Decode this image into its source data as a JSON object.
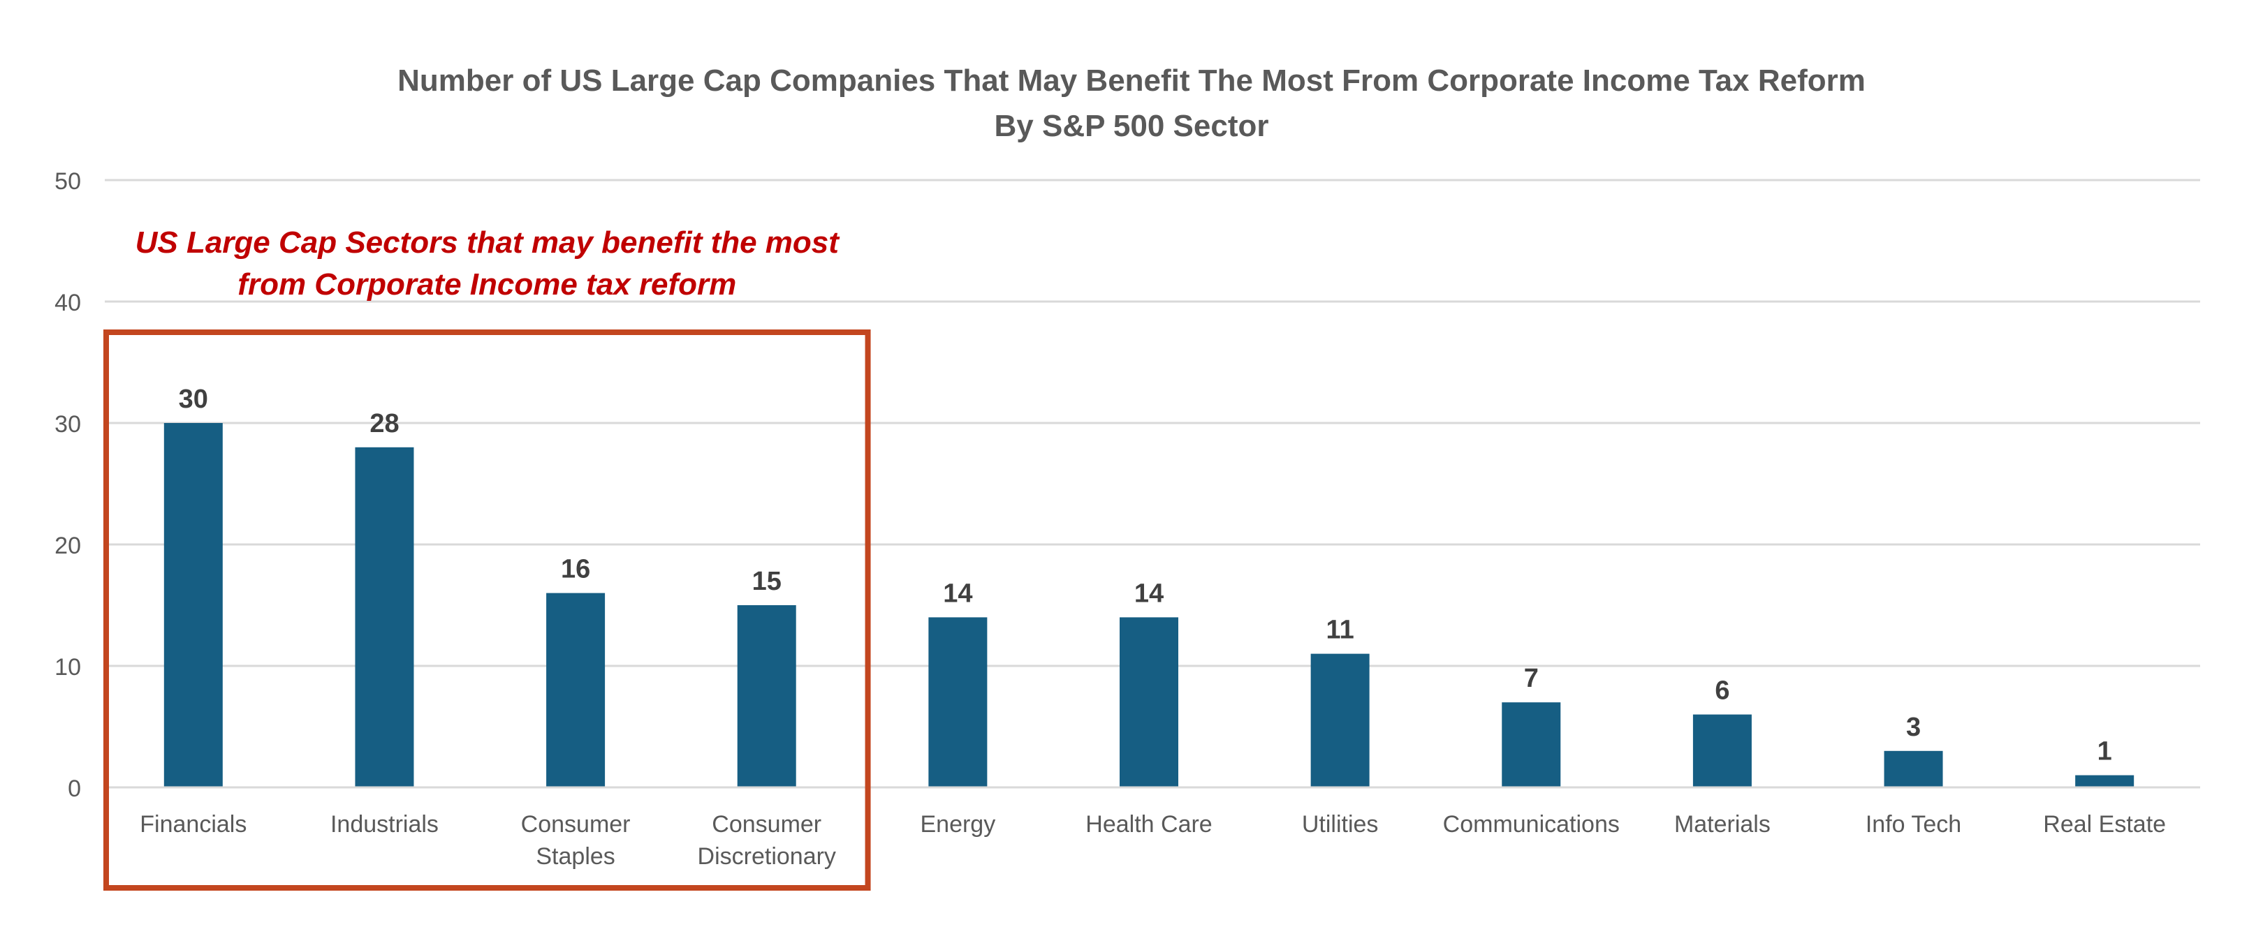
{
  "chart_data": {
    "type": "bar",
    "title": "Number of US Large Cap Companies That May Benefit The Most From Corporate Income Tax Reform",
    "subtitle": "By S&P 500 Sector",
    "xlabel": "",
    "ylabel": "",
    "categories": [
      "Financials",
      "Industrials",
      "Consumer Staples",
      "Consumer Discretionary",
      "Energy",
      "Health Care",
      "Utilities",
      "Communications",
      "Materials",
      "Info Tech",
      "Real Estate"
    ],
    "category_label_lines": [
      [
        "Financials"
      ],
      [
        "Industrials"
      ],
      [
        "Consumer",
        "Staples"
      ],
      [
        "Consumer",
        "Discretionary"
      ],
      [
        "Energy"
      ],
      [
        "Health Care"
      ],
      [
        "Utilities"
      ],
      [
        "Communications"
      ],
      [
        "Materials"
      ],
      [
        "Info Tech"
      ],
      [
        "Real Estate"
      ]
    ],
    "values": [
      30,
      28,
      16,
      15,
      14,
      14,
      11,
      7,
      6,
      3,
      1
    ],
    "ylim": [
      0,
      50
    ],
    "y_ticks": [
      0,
      10,
      20,
      30,
      40,
      50
    ],
    "grid": true,
    "legend": "none",
    "bar_color": "#165E83",
    "gridline_color": "#D9D9D9",
    "highlight": {
      "label_lines": [
        "US Large Cap Sectors that may benefit the most",
        "from Corporate Income tax reform"
      ],
      "categories": [
        "Financials",
        "Industrials",
        "Consumer Staples",
        "Consumer Discretionary"
      ],
      "box_color": "#C3461F",
      "text_color": "#C00000"
    }
  }
}
